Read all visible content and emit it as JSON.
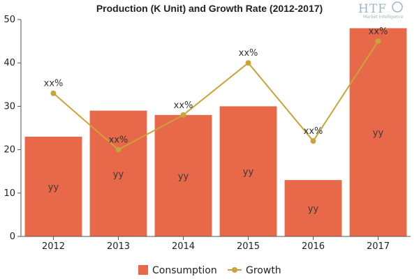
{
  "logo": {
    "text": "HTF",
    "subtext": "Market Intelligence"
  },
  "colors": {
    "bar": "#E8684A",
    "line": "#C9A43A",
    "axis": "#555555",
    "grid": "#cccccc"
  },
  "chart_data": {
    "type": "bar",
    "title": "Production (K Unit) and Growth Rate (2012-2017)",
    "categories": [
      "2012",
      "2013",
      "2014",
      "2015",
      "2016",
      "2017"
    ],
    "ylim": [
      0,
      50
    ],
    "yticks": [
      "0",
      "10",
      "20",
      "30",
      "40",
      "50"
    ],
    "series": [
      {
        "name": "Consumption",
        "kind": "bar",
        "values": [
          23,
          29,
          28,
          30,
          13,
          48
        ],
        "labels": [
          "yy",
          "yy",
          "yy",
          "yy",
          "yy",
          "yy"
        ]
      },
      {
        "name": "Growth",
        "kind": "line",
        "values": [
          33,
          20,
          28,
          40,
          22,
          45
        ],
        "labels": [
          "xx%",
          "xx%",
          "xx%",
          "xx%",
          "xx%",
          "xx%"
        ]
      }
    ],
    "grid": false,
    "legend": "bottom"
  }
}
